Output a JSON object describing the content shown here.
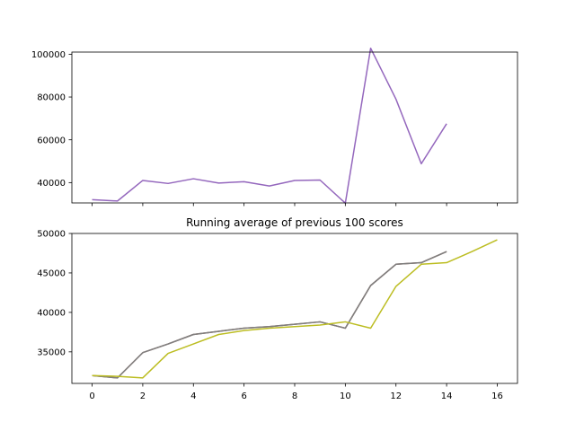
{
  "chart_data": [
    {
      "type": "line",
      "title": "",
      "xlabel": "",
      "ylabel": "",
      "xlim": [
        -0.8,
        16.8
      ],
      "ylim": [
        30500,
        101000
      ],
      "xticks": [
        0,
        2,
        4,
        6,
        8,
        10,
        12,
        14,
        16
      ],
      "xtick_labels_visible": false,
      "yticks": [
        40000,
        60000,
        80000,
        100000
      ],
      "ytick_labels": [
        "40000",
        "60000",
        "80000",
        "100000"
      ],
      "grid": false,
      "legend": "none",
      "series": [
        {
          "color": "#9467bd",
          "x": [
            0,
            1,
            2,
            3,
            4,
            5,
            6,
            7,
            8,
            9,
            10,
            11,
            12,
            13,
            14
          ],
          "y": [
            32000,
            31400,
            41000,
            39600,
            41800,
            39800,
            40400,
            38400,
            41000,
            41200,
            30400,
            102800,
            79000,
            48800,
            67500
          ]
        }
      ]
    },
    {
      "type": "line",
      "title": "Running average of previous 100 scores",
      "xlabel": "",
      "ylabel": "",
      "xlim": [
        -0.8,
        16.8
      ],
      "ylim": [
        31000,
        50000
      ],
      "xticks": [
        0,
        2,
        4,
        6,
        8,
        10,
        12,
        14,
        16
      ],
      "xtick_labels": [
        "0",
        "2",
        "4",
        "6",
        "8",
        "10",
        "12",
        "14",
        "16"
      ],
      "yticks": [
        35000,
        40000,
        45000,
        50000
      ],
      "ytick_labels": [
        "35000",
        "40000",
        "45000",
        "50000"
      ],
      "grid": false,
      "legend": "none",
      "series": [
        {
          "color": "#8c564b",
          "x": [
            0,
            1,
            2,
            3,
            4,
            5,
            6,
            7,
            8,
            9,
            10,
            11,
            12,
            13,
            14
          ],
          "y": [
            32000,
            31700,
            34900,
            36000,
            37200,
            37600,
            38000,
            38200,
            38500,
            38800,
            38000,
            43400,
            46100,
            46300,
            47700
          ]
        },
        {
          "color": "#7f7f7f",
          "x": [
            0,
            1,
            2,
            3,
            4,
            5,
            6,
            7,
            8,
            9,
            10,
            11,
            12,
            13,
            14
          ],
          "y": [
            32000,
            31700,
            34900,
            36000,
            37200,
            37600,
            38000,
            38200,
            38500,
            38800,
            38000,
            43400,
            46100,
            46300,
            47700
          ]
        },
        {
          "color": "#bcbd22",
          "x": [
            0,
            1,
            2,
            3,
            4,
            5,
            6,
            7,
            8,
            9,
            10,
            11,
            12,
            13,
            14,
            15,
            16
          ],
          "y": [
            32000,
            31900,
            31700,
            34800,
            36000,
            37200,
            37700,
            38000,
            38200,
            38400,
            38800,
            38000,
            43300,
            46100,
            46300,
            47700,
            49200
          ]
        }
      ]
    }
  ]
}
